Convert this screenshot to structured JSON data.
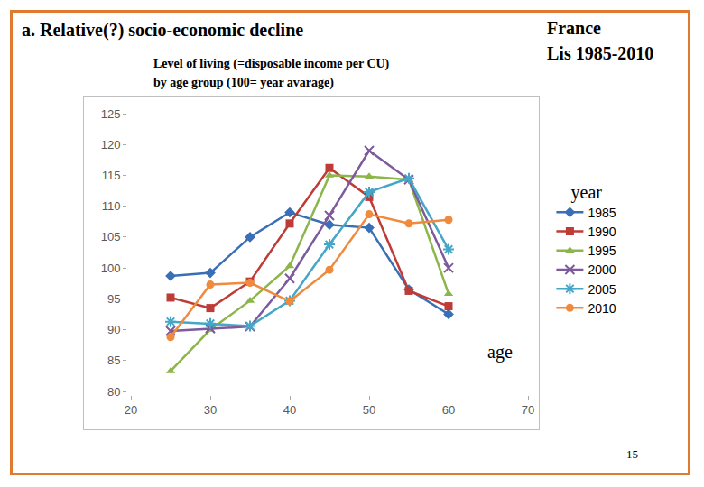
{
  "slide": {
    "title": "a. Relative(?) socio-economic decline",
    "corner": [
      "France",
      "Lis 1985-2010"
    ],
    "page": "15"
  },
  "chart_data": {
    "type": "line",
    "subtitle": [
      "Level of living (=disposable income per CU)",
      "by age group (100= year avarage)"
    ],
    "x_label": "age",
    "legend_title": "year",
    "x": [
      25,
      30,
      35,
      40,
      45,
      50,
      55,
      60
    ],
    "series": [
      {
        "name": "1985",
        "color": "#3a6fb5",
        "marker": "diamond",
        "values": [
          98.7,
          99.2,
          105.0,
          109.0,
          107.0,
          106.5,
          96.5,
          92.5
        ]
      },
      {
        "name": "1990",
        "color": "#be3b36",
        "marker": "square",
        "values": [
          95.2,
          93.5,
          97.8,
          107.2,
          116.2,
          111.5,
          96.3,
          93.8
        ]
      },
      {
        "name": "1995",
        "color": "#8cb64a",
        "marker": "triangle-up",
        "values": [
          83.3,
          90.0,
          94.7,
          100.3,
          115.0,
          114.8,
          114.3,
          95.8
        ]
      },
      {
        "name": "2000",
        "color": "#7c5a9c",
        "marker": "x-thin-open",
        "values": [
          89.8,
          90.2,
          90.5,
          98.3,
          108.5,
          119.0,
          114.3,
          100.0
        ]
      },
      {
        "name": "2005",
        "color": "#45a6c8",
        "marker": "asterisk-open",
        "values": [
          91.3,
          91.0,
          90.6,
          94.7,
          103.8,
          112.3,
          114.5,
          103.0
        ]
      },
      {
        "name": "2010",
        "color": "#f08a3c",
        "marker": "circle",
        "values": [
          88.8,
          97.3,
          97.6,
          94.6,
          99.7,
          108.7,
          107.2,
          107.8
        ]
      }
    ],
    "xlim": [
      20,
      70
    ],
    "xticks": [
      20,
      30,
      40,
      50,
      60,
      70
    ],
    "ylim": [
      80,
      125
    ],
    "yticks": [
      80,
      85,
      90,
      95,
      100,
      105,
      110,
      115,
      120,
      125
    ],
    "grid": false,
    "legend": "right"
  }
}
